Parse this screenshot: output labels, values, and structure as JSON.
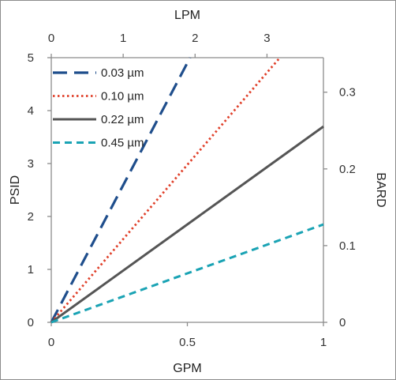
{
  "chart_data": {
    "type": "line",
    "xlabel": "GPM",
    "x2label": "LPM",
    "ylabel": "PSID",
    "y2label": "BARD",
    "xlim": [
      0,
      1
    ],
    "ylim": [
      0,
      5
    ],
    "x2lim": [
      0,
      3.785
    ],
    "y2lim": [
      0,
      0.345
    ],
    "x_ticks": [
      "0",
      "0.5",
      "1"
    ],
    "x2_ticks": [
      "0",
      "1",
      "2",
      "3"
    ],
    "y_ticks": [
      "0",
      "1",
      "2",
      "3",
      "4",
      "5"
    ],
    "y2_ticks": [
      "0",
      "0.1",
      "0.2",
      "0.3"
    ],
    "grid": false,
    "legend_position": "top-left",
    "series": [
      {
        "name": "0.03 µm",
        "color": "#1f4e8c",
        "dash": "long-dash",
        "x": [
          0,
          0.51
        ],
        "y": [
          0,
          5
        ]
      },
      {
        "name": "0.10 µm",
        "color": "#e0402a",
        "dash": "dotted",
        "x": [
          0,
          0.84
        ],
        "y": [
          0,
          5
        ]
      },
      {
        "name": "0.22 µm",
        "color": "#555555",
        "dash": "solid",
        "x": [
          0,
          1
        ],
        "y": [
          0,
          3.7
        ]
      },
      {
        "name": "0.45 µm",
        "color": "#1aa3b4",
        "dash": "dashed",
        "x": [
          0,
          1
        ],
        "y": [
          0,
          1.85
        ]
      }
    ]
  }
}
